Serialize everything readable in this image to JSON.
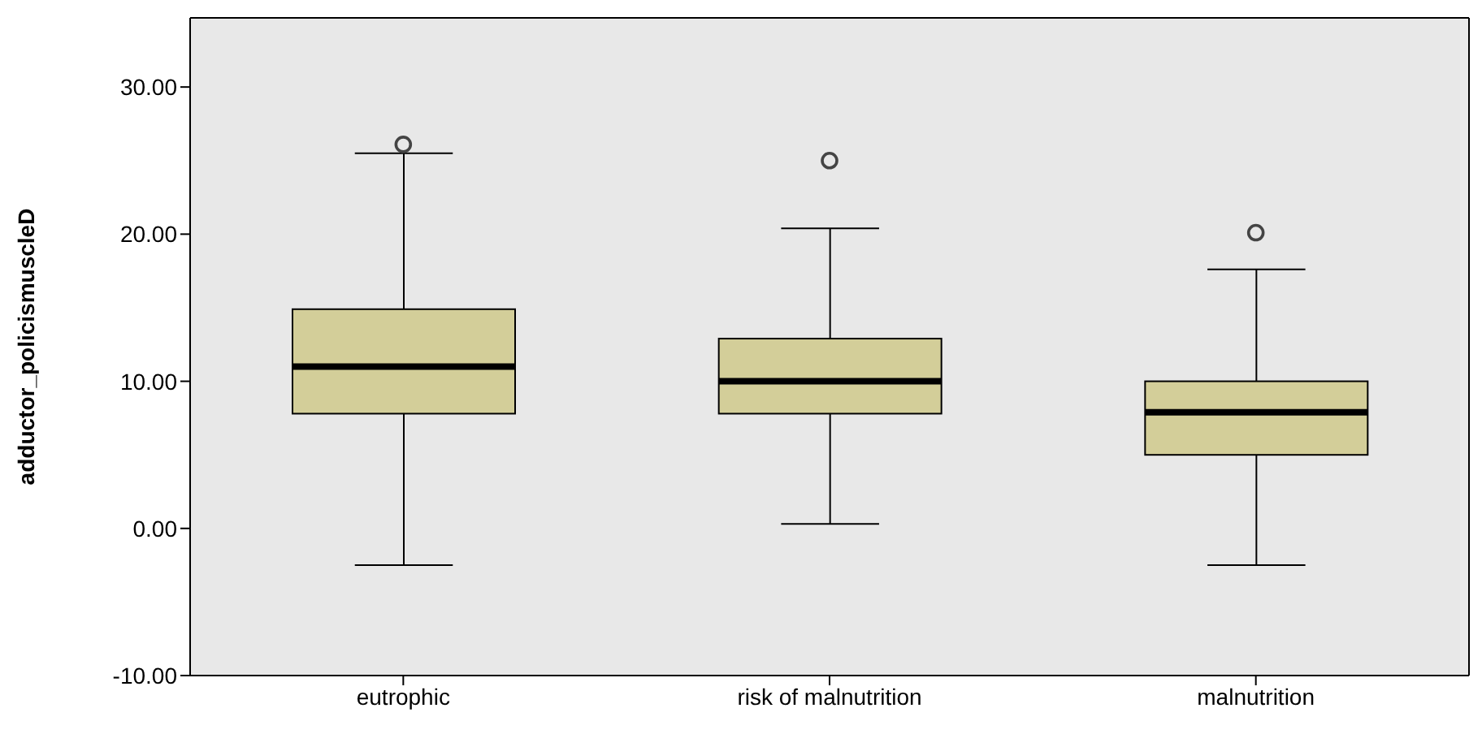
{
  "chart_data": {
    "type": "box",
    "ylabel": "adductor_policismuscleD",
    "categories": [
      "eutrophic",
      "risk of malnutrition",
      "malnutrition"
    ],
    "boxes": [
      {
        "low": -2.5,
        "q1": 7.8,
        "median": 11.0,
        "q3": 14.9,
        "high": 25.5,
        "outliers": [
          26.1
        ]
      },
      {
        "low": 0.3,
        "q1": 7.8,
        "median": 10.0,
        "q3": 12.9,
        "high": 20.4,
        "outliers": [
          25.0
        ]
      },
      {
        "low": -2.5,
        "q1": 5.0,
        "median": 7.9,
        "q3": 10.0,
        "high": 17.6,
        "outliers": [
          20.1
        ]
      }
    ],
    "color": "#d3ce99",
    "ylim": [
      -10,
      34.7
    ],
    "yticks": [
      {
        "value": -10,
        "label": "-10.00"
      },
      {
        "value": 0,
        "label": "0.00"
      },
      {
        "value": 10,
        "label": "10.00"
      },
      {
        "value": 20,
        "label": "20.00"
      },
      {
        "value": 30,
        "label": "30.00"
      }
    ],
    "grid": false,
    "legend": false
  }
}
